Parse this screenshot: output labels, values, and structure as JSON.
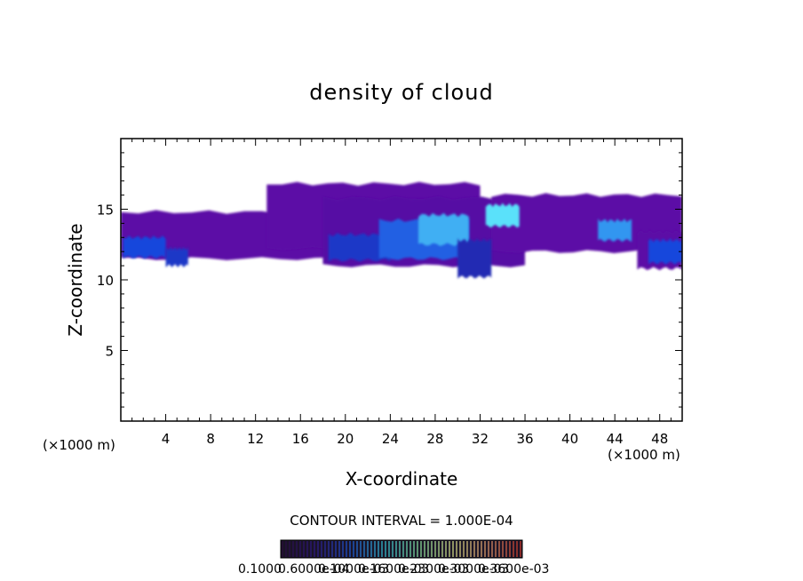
{
  "chart_data": {
    "type": "heatmap",
    "title": "density of cloud",
    "xlabel": "X-coordinate",
    "ylabel": "Z-coordinate",
    "x_unit_left": "(×1000 m)",
    "x_unit_right": "(×1000 m)",
    "xlim": [
      0,
      50
    ],
    "ylim": [
      0,
      20
    ],
    "xticks": [
      4,
      8,
      12,
      16,
      20,
      24,
      28,
      32,
      36,
      40,
      44,
      48
    ],
    "yticks": [
      5,
      10,
      15
    ],
    "contour_interval_label": "CONTOUR INTERVAL = 1.000E-04",
    "colorbar_labels": [
      "0.1000",
      "0.6000e-04",
      "0.1000e-03",
      "0.1600e-03",
      "0.2300e-03",
      "0.3000e-03",
      "0.3600e-03"
    ],
    "colorbar_colors": [
      "#2a0a3a",
      "#2e1a8c",
      "#1e5adc",
      "#36c8d8",
      "#8ae6a0",
      "#dce68a",
      "#e6a070",
      "#d23a2a"
    ],
    "cloud_regions": [
      {
        "x": [
          0,
          22
        ],
        "z_bottom": 11.5,
        "z_top": 14.8,
        "level": 0.1
      },
      {
        "x": [
          13,
          32
        ],
        "z_bottom": 12.2,
        "z_top": 16.8,
        "level": 0.1
      },
      {
        "x": [
          18,
          36
        ],
        "z_bottom": 11.0,
        "z_top": 15.8,
        "level": 0.12
      },
      {
        "x": [
          33,
          50
        ],
        "z_bottom": 12.0,
        "z_top": 16.0,
        "level": 0.1
      },
      {
        "x": [
          46,
          50
        ],
        "z_bottom": 10.8,
        "z_top": 13.4,
        "level": 0.1
      },
      {
        "x": [
          0.2,
          4.0
        ],
        "z_bottom": 11.6,
        "z_top": 13.0,
        "level": 0.45
      },
      {
        "x": [
          4.0,
          6.0
        ],
        "z_bottom": 11.0,
        "z_top": 12.2,
        "level": 0.4
      },
      {
        "x": [
          18.5,
          24.0
        ],
        "z_bottom": 11.4,
        "z_top": 13.2,
        "level": 0.4
      },
      {
        "x": [
          23.0,
          31.0
        ],
        "z_bottom": 11.5,
        "z_top": 14.2,
        "level": 0.5
      },
      {
        "x": [
          26.5,
          31.0
        ],
        "z_bottom": 12.5,
        "z_top": 14.6,
        "level": 0.65
      },
      {
        "x": [
          30.0,
          33.0
        ],
        "z_bottom": 10.2,
        "z_top": 12.8,
        "level": 0.35
      },
      {
        "x": [
          32.5,
          35.5
        ],
        "z_bottom": 13.8,
        "z_top": 15.3,
        "level": 0.75
      },
      {
        "x": [
          42.5,
          45.5
        ],
        "z_bottom": 12.8,
        "z_top": 14.2,
        "level": 0.6
      },
      {
        "x": [
          47.0,
          50.0
        ],
        "z_bottom": 11.2,
        "z_top": 12.8,
        "level": 0.45
      }
    ]
  }
}
